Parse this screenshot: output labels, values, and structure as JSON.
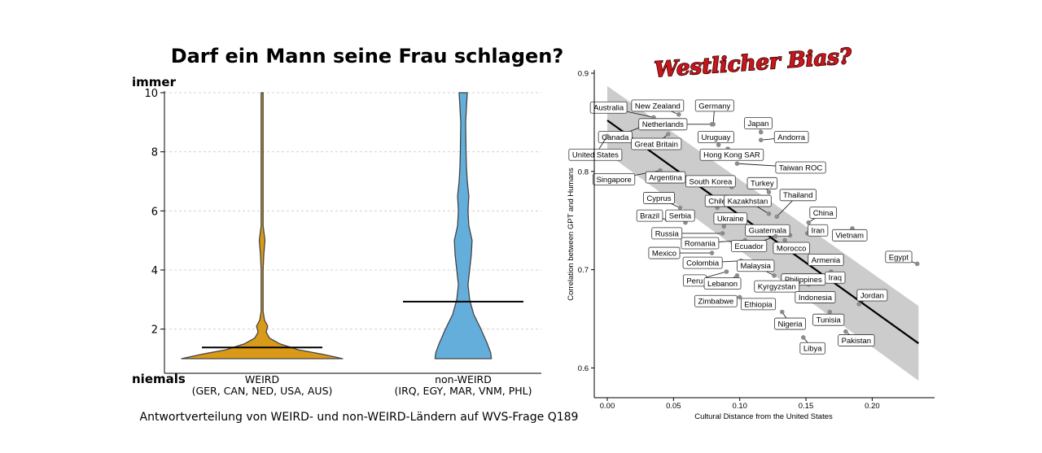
{
  "left": {
    "title": "Darf ein Mann seine Frau schlagen?",
    "y_top_label": "immer",
    "y_bottom_label": "niemals",
    "caption": "Antwortverteilung von WEIRD- und non-WEIRD-Ländern auf WVS-Frage Q189",
    "colors": {
      "weird": "#d89a18",
      "nonweird": "#64aedb"
    }
  },
  "right": {
    "badge": "Westlicher Bias?",
    "badge_color": "#c8161d"
  },
  "chart_data": [
    {
      "type": "violin",
      "title": "Darf ein Mann seine Frau schlagen?",
      "ylim": [
        1,
        10
      ],
      "yticks": [
        2,
        4,
        6,
        8,
        10
      ],
      "categories": [
        {
          "name": "WEIRD",
          "sub": "(GER, CAN, NED, USA, AUS)",
          "mean": 1.38,
          "density": [
            [
              1.0,
              1.0
            ],
            [
              1.15,
              0.75
            ],
            [
              1.3,
              0.45
            ],
            [
              1.5,
              0.22
            ],
            [
              1.7,
              0.09
            ],
            [
              1.9,
              0.05
            ],
            [
              2.1,
              0.07
            ],
            [
              2.3,
              0.03
            ],
            [
              2.6,
              0.01
            ],
            [
              3.0,
              0.01
            ],
            [
              3.5,
              0.008
            ],
            [
              4.0,
              0.012
            ],
            [
              4.5,
              0.02
            ],
            [
              5.0,
              0.035
            ],
            [
              5.5,
              0.012
            ],
            [
              6.0,
              0.008
            ],
            [
              7.0,
              0.005
            ],
            [
              8.0,
              0.005
            ],
            [
              9.0,
              0.006
            ],
            [
              9.5,
              0.007
            ],
            [
              10.0,
              0.006
            ]
          ]
        },
        {
          "name": "non-WEIRD",
          "sub": "(IRQ, EGY, MAR, VNM, PHL)",
          "mean": 2.93,
          "density": [
            [
              1.0,
              0.35
            ],
            [
              1.2,
              0.34
            ],
            [
              1.5,
              0.3
            ],
            [
              2.0,
              0.22
            ],
            [
              2.5,
              0.13
            ],
            [
              3.0,
              0.08
            ],
            [
              3.5,
              0.06
            ],
            [
              4.0,
              0.08
            ],
            [
              4.5,
              0.1
            ],
            [
              5.0,
              0.11
            ],
            [
              5.5,
              0.07
            ],
            [
              6.0,
              0.06
            ],
            [
              6.5,
              0.07
            ],
            [
              7.0,
              0.05
            ],
            [
              7.5,
              0.04
            ],
            [
              8.0,
              0.035
            ],
            [
              9.0,
              0.03
            ],
            [
              9.5,
              0.04
            ],
            [
              10.0,
              0.05
            ]
          ]
        }
      ]
    },
    {
      "type": "scatter",
      "xlabel": "Cultural Distance from the United States",
      "ylabel": "Correlation between GPT and Humans",
      "xlim": [
        -0.01,
        0.245
      ],
      "ylim": [
        0.58,
        0.905
      ],
      "xticks": [
        0.0,
        0.05,
        0.1,
        0.15,
        0.2
      ],
      "xtick_labels": [
        "0.00",
        "0.05",
        "0.10",
        "0.15",
        "0.20"
      ],
      "yticks": [
        0.6,
        0.7,
        0.8,
        0.9
      ],
      "yticks_labels": [
        "0.6",
        "0.7",
        "0.8",
        "0.9"
      ],
      "trend": {
        "x": [
          0.0,
          0.235
        ],
        "y": [
          0.852,
          0.625
        ]
      },
      "band": {
        "x": [
          0.0,
          0.235
        ],
        "upper": [
          0.887,
          0.663
        ],
        "lower": [
          0.818,
          0.587
        ]
      },
      "points": [
        {
          "name": "Australia",
          "x": 0.035,
          "y": 0.855,
          "lx": 0.001,
          "ly": 0.865
        },
        {
          "name": "New Zealand",
          "x": 0.054,
          "y": 0.858,
          "lx": 0.038,
          "ly": 0.867
        },
        {
          "name": "Germany",
          "x": 0.08,
          "y": 0.848,
          "lx": 0.081,
          "ly": 0.867
        },
        {
          "name": "Canada",
          "x": 0.025,
          "y": 0.845,
          "lx": 0.006,
          "ly": 0.835
        },
        {
          "name": "Netherlands",
          "x": 0.079,
          "y": 0.848,
          "lx": 0.042,
          "ly": 0.848
        },
        {
          "name": "Japan",
          "x": 0.116,
          "y": 0.84,
          "lx": 0.114,
          "ly": 0.849
        },
        {
          "name": "Andorra",
          "x": 0.116,
          "y": 0.832,
          "lx": 0.139,
          "ly": 0.835
        },
        {
          "name": "United States",
          "x": 0.0,
          "y": 0.836,
          "lx": -0.009,
          "ly": 0.817
        },
        {
          "name": "Great Britain",
          "x": 0.046,
          "y": 0.838,
          "lx": 0.037,
          "ly": 0.828
        },
        {
          "name": "Uruguay",
          "x": 0.084,
          "y": 0.827,
          "lx": 0.082,
          "ly": 0.835
        },
        {
          "name": "Hong Kong SAR",
          "x": 0.091,
          "y": 0.823,
          "lx": 0.094,
          "ly": 0.817
        },
        {
          "name": "Taiwan ROC",
          "x": 0.098,
          "y": 0.808,
          "lx": 0.146,
          "ly": 0.804
        },
        {
          "name": "Singapore",
          "x": 0.04,
          "y": 0.801,
          "lx": 0.005,
          "ly": 0.792
        },
        {
          "name": "Argentina",
          "x": 0.057,
          "y": 0.797,
          "lx": 0.044,
          "ly": 0.794
        },
        {
          "name": "South Korea",
          "x": 0.094,
          "y": 0.784,
          "lx": 0.078,
          "ly": 0.79
        },
        {
          "name": "Turkey",
          "x": 0.122,
          "y": 0.779,
          "lx": 0.117,
          "ly": 0.788
        },
        {
          "name": "Cyprus",
          "x": 0.055,
          "y": 0.763,
          "lx": 0.039,
          "ly": 0.773
        },
        {
          "name": "Chile",
          "x": 0.083,
          "y": 0.763,
          "lx": 0.083,
          "ly": 0.77
        },
        {
          "name": "Kazakhstan",
          "x": 0.122,
          "y": 0.757,
          "lx": 0.106,
          "ly": 0.77
        },
        {
          "name": "Thailand",
          "x": 0.128,
          "y": 0.754,
          "lx": 0.144,
          "ly": 0.776
        },
        {
          "name": "Brazil",
          "x": 0.045,
          "y": 0.751,
          "lx": 0.032,
          "ly": 0.755
        },
        {
          "name": "Serbia",
          "x": 0.059,
          "y": 0.748,
          "lx": 0.055,
          "ly": 0.755
        },
        {
          "name": "China",
          "x": 0.152,
          "y": 0.748,
          "lx": 0.163,
          "ly": 0.758
        },
        {
          "name": "Ukraine",
          "x": 0.088,
          "y": 0.744,
          "lx": 0.093,
          "ly": 0.752
        },
        {
          "name": "Guatemala",
          "x": 0.138,
          "y": 0.735,
          "lx": 0.121,
          "ly": 0.74
        },
        {
          "name": "Iran",
          "x": 0.151,
          "y": 0.737,
          "lx": 0.159,
          "ly": 0.74
        },
        {
          "name": "Vietnam",
          "x": 0.185,
          "y": 0.742,
          "lx": 0.183,
          "ly": 0.735
        },
        {
          "name": "Russia",
          "x": 0.087,
          "y": 0.737,
          "lx": 0.045,
          "ly": 0.737
        },
        {
          "name": "Romania",
          "x": 0.104,
          "y": 0.73,
          "lx": 0.07,
          "ly": 0.727
        },
        {
          "name": "Ecuador",
          "x": 0.127,
          "y": 0.734,
          "lx": 0.107,
          "ly": 0.724
        },
        {
          "name": "Morocco",
          "x": 0.134,
          "y": 0.73,
          "lx": 0.139,
          "ly": 0.722
        },
        {
          "name": "Mexico",
          "x": 0.079,
          "y": 0.717,
          "lx": 0.043,
          "ly": 0.717
        },
        {
          "name": "Armenia",
          "x": 0.154,
          "y": 0.71,
          "lx": 0.165,
          "ly": 0.71
        },
        {
          "name": "Egypt",
          "x": 0.234,
          "y": 0.706,
          "lx": 0.22,
          "ly": 0.713
        },
        {
          "name": "Colombia",
          "x": 0.101,
          "y": 0.709,
          "lx": 0.072,
          "ly": 0.707
        },
        {
          "name": "Malaysia",
          "x": 0.126,
          "y": 0.694,
          "lx": 0.112,
          "ly": 0.704
        },
        {
          "name": "Iraq",
          "x": 0.169,
          "y": 0.698,
          "lx": 0.172,
          "ly": 0.692
        },
        {
          "name": "Peru",
          "x": 0.09,
          "y": 0.698,
          "lx": 0.066,
          "ly": 0.689
        },
        {
          "name": "Philippines",
          "x": 0.152,
          "y": 0.685,
          "lx": 0.148,
          "ly": 0.69
        },
        {
          "name": "Lebanon",
          "x": 0.098,
          "y": 0.694,
          "lx": 0.087,
          "ly": 0.686
        },
        {
          "name": "Kyrgyzstan",
          "x": 0.13,
          "y": 0.68,
          "lx": 0.128,
          "ly": 0.683
        },
        {
          "name": "Jordan",
          "x": 0.19,
          "y": 0.665,
          "lx": 0.2,
          "ly": 0.674
        },
        {
          "name": "Indonesia",
          "x": 0.151,
          "y": 0.676,
          "lx": 0.157,
          "ly": 0.672
        },
        {
          "name": "Zimbabwe",
          "x": 0.1,
          "y": 0.672,
          "lx": 0.082,
          "ly": 0.668
        },
        {
          "name": "Ethiopia",
          "x": 0.125,
          "y": 0.667,
          "lx": 0.114,
          "ly": 0.665
        },
        {
          "name": "Tunisia",
          "x": 0.168,
          "y": 0.657,
          "lx": 0.167,
          "ly": 0.649
        },
        {
          "name": "Nigeria",
          "x": 0.132,
          "y": 0.657,
          "lx": 0.138,
          "ly": 0.645
        },
        {
          "name": "Pakistan",
          "x": 0.18,
          "y": 0.637,
          "lx": 0.188,
          "ly": 0.628
        },
        {
          "name": "Libya",
          "x": 0.148,
          "y": 0.631,
          "lx": 0.155,
          "ly": 0.62
        }
      ]
    }
  ]
}
